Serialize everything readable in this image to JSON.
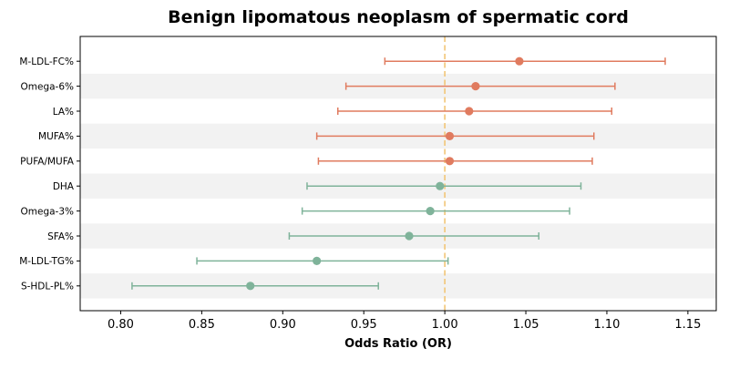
{
  "chart_data": {
    "type": "forest",
    "title": "Benign lipomatous neoplasm of spermatic cord",
    "xlabel": "Odds Ratio (OR)",
    "ylabel": "",
    "xlim": [
      0.775,
      1.1675
    ],
    "xticks": [
      0.8,
      0.85,
      0.9,
      0.95,
      1.0,
      1.05,
      1.1,
      1.15
    ],
    "xtick_labels": [
      "0.80",
      "0.85",
      "0.90",
      "0.95",
      "1.00",
      "1.05",
      "1.10",
      "1.15"
    ],
    "reference_line": 1.0,
    "grid": false,
    "alternating_row_shading": true,
    "colors": {
      "risk": "#e07b5f",
      "protective": "#7fb39a",
      "reference": "#f2c677",
      "band": "#f2f2f2"
    },
    "rows": [
      {
        "label": "M-LDL-FC%",
        "or": 1.046,
        "lower": 0.963,
        "upper": 1.136,
        "direction": "risk"
      },
      {
        "label": "Omega-6%",
        "or": 1.019,
        "lower": 0.939,
        "upper": 1.105,
        "direction": "risk"
      },
      {
        "label": "LA%",
        "or": 1.015,
        "lower": 0.934,
        "upper": 1.103,
        "direction": "risk"
      },
      {
        "label": "MUFA%",
        "or": 1.003,
        "lower": 0.921,
        "upper": 1.092,
        "direction": "risk"
      },
      {
        "label": "PUFA/MUFA",
        "or": 1.003,
        "lower": 0.922,
        "upper": 1.091,
        "direction": "risk"
      },
      {
        "label": "DHA",
        "or": 0.997,
        "lower": 0.915,
        "upper": 1.084,
        "direction": "protective"
      },
      {
        "label": "Omega-3%",
        "or": 0.991,
        "lower": 0.912,
        "upper": 1.077,
        "direction": "protective"
      },
      {
        "label": "SFA%",
        "or": 0.978,
        "lower": 0.904,
        "upper": 1.058,
        "direction": "protective"
      },
      {
        "label": "M-LDL-TG%",
        "or": 0.921,
        "lower": 0.847,
        "upper": 1.002,
        "direction": "protective"
      },
      {
        "label": "S-HDL-PL%",
        "or": 0.88,
        "lower": 0.807,
        "upper": 0.959,
        "direction": "protective"
      }
    ]
  }
}
